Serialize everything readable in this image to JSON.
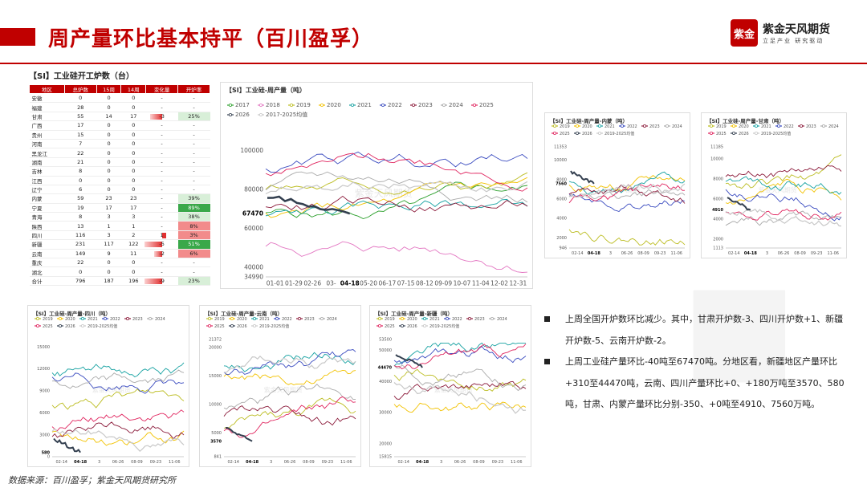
{
  "title": "周产量环比基本持平（百川盈孚）",
  "logo": {
    "mark": "紫金",
    "name": "紫金天风期货",
    "tagline": "立足产业 研究驱动"
  },
  "table": {
    "title": "【SI】工业硅开工炉数（台）",
    "headers": [
      "地区",
      "总炉数",
      "15周",
      "14周",
      "变化量",
      "开炉率"
    ],
    "rows": [
      [
        "安徽",
        "0",
        "0",
        "0",
        "-",
        "-",
        0
      ],
      [
        "福建",
        "28",
        "0",
        "0",
        "-",
        "-",
        0
      ],
      [
        "甘肃",
        "55",
        "14",
        "17",
        "-3",
        "25%",
        -3
      ],
      [
        "广西",
        "17",
        "0",
        "0",
        "-",
        "-",
        0
      ],
      [
        "贵州",
        "15",
        "0",
        "0",
        "-",
        "-",
        0
      ],
      [
        "河南",
        "7",
        "0",
        "0",
        "-",
        "-",
        0
      ],
      [
        "黑龙江",
        "22",
        "0",
        "0",
        "-",
        "-",
        0
      ],
      [
        "湖南",
        "21",
        "0",
        "0",
        "-",
        "-",
        0
      ],
      [
        "吉林",
        "8",
        "0",
        "0",
        "-",
        "-",
        0
      ],
      [
        "江西",
        "0",
        "0",
        "0",
        "-",
        "-",
        0
      ],
      [
        "辽宁",
        "6",
        "0",
        "0",
        "-",
        "-",
        0
      ],
      [
        "内蒙",
        "59",
        "23",
        "23",
        "-",
        "39%",
        0
      ],
      [
        "宁夏",
        "19",
        "17",
        "17",
        "-",
        "89%",
        0
      ],
      [
        "青海",
        "8",
        "3",
        "3",
        "-",
        "38%",
        0
      ],
      [
        "陕西",
        "13",
        "1",
        "1",
        "-",
        "8%",
        0
      ],
      [
        "四川",
        "116",
        "3",
        "2",
        "1",
        "3%",
        1
      ],
      [
        "新疆",
        "231",
        "117",
        "122",
        "-5",
        "51%",
        -5
      ],
      [
        "云南",
        "149",
        "9",
        "11",
        "-2",
        "6%",
        -2
      ],
      [
        "重庆",
        "22",
        "0",
        "0",
        "-",
        "-",
        0
      ],
      [
        "湖北",
        "0",
        "0",
        "0",
        "-",
        "-",
        0
      ],
      [
        "合计",
        "796",
        "187",
        "196",
        "-9",
        "23%",
        -9
      ]
    ]
  },
  "colors": {
    "2017": "#2ca02c",
    "2018": "#e377c2",
    "2019": "#bcbd22",
    "2020": "#f2c200",
    "2021": "#17a2a2",
    "2022": "#3b4cc0",
    "2023": "#8b1a3a",
    "2024": "#aaaaaa",
    "2025": "#e0245e",
    "2026": "#333f4f",
    "avg": "#c8c8c8"
  },
  "chart_data": [
    {
      "type": "line",
      "title": "【SI】工业硅-周产量（吨）",
      "legend": [
        "2017",
        "2018",
        "2019",
        "2020",
        "2021",
        "2022",
        "2023",
        "2024",
        "2025",
        "2026",
        "2017-2025均值"
      ],
      "yticks": [
        "100000",
        "80000",
        "67470",
        "60000",
        "40000",
        "34990"
      ],
      "xticks": [
        "01-01",
        "01-29",
        "02-26",
        "03-",
        "04-18",
        "05-20",
        "06-17",
        "07-15",
        "08-12",
        "09-09",
        "10-07",
        "11-04",
        "12-02",
        "12-31"
      ],
      "ylim": [
        34990,
        110000
      ],
      "highlight": {
        "x": "04-18",
        "y": 67470
      }
    },
    {
      "type": "line",
      "title": "【SI】工业硅-周产量-内蒙（吨）",
      "legend": [
        "2019",
        "2020",
        "2021",
        "2022",
        "2023",
        "2024",
        "2025",
        "2026",
        "2019-2025均值"
      ],
      "yticks": [
        "11353",
        "10000",
        "8000",
        "7560",
        "6000",
        "4000",
        "2000",
        "946"
      ],
      "xticks": [
        "02-14",
        "04-18",
        "3",
        "06-26",
        "08-09",
        "09-23",
        "11-06"
      ],
      "ylim": [
        946,
        11353
      ],
      "highlight": {
        "x": "04-18",
        "y": 7560
      }
    },
    {
      "type": "line",
      "title": "【SI】工业硅-周产量-甘肃（吨）",
      "legend": [
        "2019",
        "2020",
        "2021",
        "2022",
        "2023",
        "2024",
        "2025",
        "2026",
        "2019-2025均值"
      ],
      "yticks": [
        "11185",
        "10000",
        "8000",
        "6000",
        "4910",
        "4000",
        "2000",
        "1113"
      ],
      "xticks": [
        "02-14",
        "04-18",
        "3",
        "06-26",
        "08-09",
        "09-23",
        "11-06"
      ],
      "ylim": [
        1113,
        11185
      ],
      "highlight": {
        "x": "04-18",
        "y": 4910
      }
    },
    {
      "type": "line",
      "title": "【SI】工业硅-周产量-四川（吨）",
      "legend": [
        "2019",
        "2020",
        "2021",
        "2022",
        "2023",
        "2024",
        "2025",
        "2026",
        "2019-2025均值"
      ],
      "yticks": [
        "15000",
        "12000",
        "9000",
        "6000",
        "3000",
        "580",
        "0"
      ],
      "xticks": [
        "02-14",
        "04-18",
        "3",
        "06-26",
        "08-09",
        "09-23",
        "11-06"
      ],
      "ylim": [
        0,
        16000
      ],
      "highlight": {
        "x": "04-18",
        "y": 580
      }
    },
    {
      "type": "line",
      "title": "【SI】工业硅-周产量-云南（吨）",
      "legend": [
        "2019",
        "2020",
        "2021",
        "2022",
        "2023",
        "2024",
        "2025",
        "2026",
        "2019-2025均值"
      ],
      "yticks": [
        "21372",
        "20000",
        "15000",
        "10000",
        "5000",
        "3570",
        "841"
      ],
      "xticks": [
        "02-14",
        "04-18",
        "3",
        "06-26",
        "08-09",
        "09-23",
        "11-06"
      ],
      "ylim": [
        841,
        21372
      ],
      "highlight": {
        "x": "04-18",
        "y": 3570
      }
    },
    {
      "type": "line",
      "title": "【SI】工业硅-周产量-新疆（吨）",
      "legend": [
        "2019",
        "2020",
        "2021",
        "2022",
        "2023",
        "2024",
        "2025",
        "2026",
        "2019-2025均值"
      ],
      "yticks": [
        "53500",
        "50000",
        "44470",
        "40000",
        "30000",
        "20000",
        "15815"
      ],
      "xticks": [
        "02-14",
        "04-18",
        "3",
        "06-26",
        "08-09",
        "09-23",
        "11-06"
      ],
      "ylim": [
        15815,
        53500
      ],
      "highlight": {
        "x": "04-18",
        "y": 44470
      }
    }
  ],
  "bullets": [
    "上周全国开炉数环比减少。其中，甘肃开炉数-3、四川开炉数+1、新疆开炉数-5、云南开炉数-2。",
    "上周工业硅产量环比-40吨至67470吨。分地区看，新疆地区产量环比+310至44470吨，云南、四川产量环比+0、+180万吨至3570、580吨，甘肃、内蒙产量环比分别-350、+0吨至4910、7560万吨。"
  ],
  "watermark": "紫金天风期货",
  "footer": "数据来源：百川盈孚；紫金天风期货研究所"
}
